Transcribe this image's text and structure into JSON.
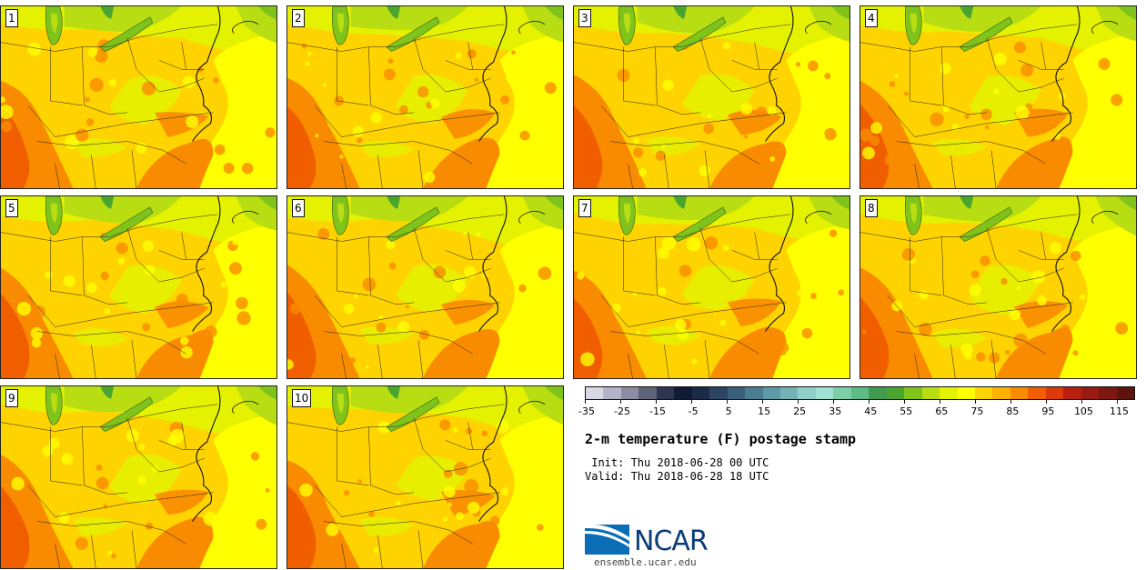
{
  "panels": [
    {
      "label": "1"
    },
    {
      "label": "2"
    },
    {
      "label": "3"
    },
    {
      "label": "4"
    },
    {
      "label": "5"
    },
    {
      "label": "6"
    },
    {
      "label": "7"
    },
    {
      "label": "8"
    },
    {
      "label": "9"
    },
    {
      "label": "10"
    }
  ],
  "colorbar": {
    "colors": [
      "#d9d9e6",
      "#b4b4c8",
      "#8c8ca3",
      "#5f6478",
      "#2d3650",
      "#101c35",
      "#1b2a47",
      "#2a4462",
      "#39607b",
      "#4b7d92",
      "#5e99a6",
      "#74b2b5",
      "#8ecfca",
      "#9fe2d4",
      "#7ccfa6",
      "#5dbb86",
      "#3f9b50",
      "#4aa52f",
      "#80c41b",
      "#b8dd12",
      "#e4f200",
      "#ffff00",
      "#fed300",
      "#fdb100",
      "#f98b00",
      "#f05e00",
      "#dc3a0a",
      "#b81f0f",
      "#9a1b12",
      "#7c1810",
      "#5c140d"
    ],
    "tick_labels": [
      "-35",
      "-25",
      "-15",
      "-5",
      "5",
      "15",
      "25",
      "35",
      "45",
      "55",
      "65",
      "75",
      "85",
      "95",
      "105",
      "115"
    ]
  },
  "title": "2-m temperature (F) postage stamp",
  "init": " Init: Thu 2018-06-28 00 UTC",
  "valid": "Valid: Thu 2018-06-28 18 UTC",
  "logo": {
    "text": "NCAR",
    "site": "ensemble.ucar.edu",
    "blue": "#0a6db5",
    "navy": "#0a3d7a"
  },
  "map_colors": {
    "base": "#fed300",
    "warm": "#f98b00",
    "hot": "#f05e00",
    "mild": "#ffff00",
    "cool": "#e4f200",
    "cooler": "#b8dd12",
    "green": "#80c41b",
    "dark_green": "#4aa52f",
    "lake_outline": "#2a5a1a",
    "border": "#222222"
  }
}
